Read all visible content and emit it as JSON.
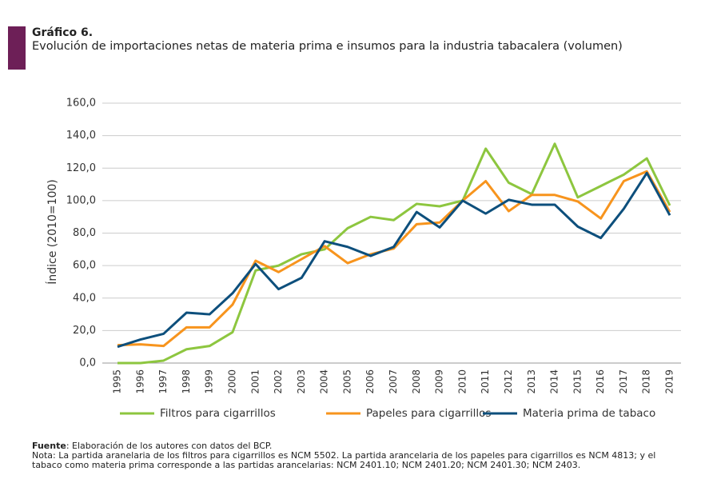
{
  "header": {
    "title": "Gráfico 6.",
    "subtitle": "Evolución de importaciones netas de materia prima e insumos para la industria tabacalera (volumen)"
  },
  "chart_data": {
    "type": "line",
    "ylabel": "Índice (2010=100)",
    "categories": [
      "1995",
      "1996",
      "1997",
      "1998",
      "1999",
      "2000",
      "2001",
      "2002",
      "2003",
      "2004",
      "2005",
      "2006",
      "2007",
      "2008",
      "2009",
      "2010",
      "2011",
      "2012",
      "2013",
      "2014",
      "2015",
      "2016",
      "2017",
      "2018",
      "2019"
    ],
    "series": [
      {
        "name": "Filtros para cigarrillos",
        "color": "#8dc63f",
        "values": [
          0,
          0,
          1.5,
          8.5,
          10.5,
          19,
          57,
          60,
          67,
          70,
          83,
          90,
          88,
          98,
          96.5,
          100,
          132,
          111,
          104,
          135,
          102,
          109,
          116,
          126,
          97
        ]
      },
      {
        "name": "Papeles para cigarrillos",
        "color": "#f7941d",
        "values": [
          11,
          11.5,
          10.5,
          22,
          22,
          36,
          63,
          56,
          64,
          72,
          61.5,
          67,
          70.5,
          85.5,
          86.5,
          100,
          112,
          93.5,
          103.5,
          103.5,
          99.5,
          89,
          112,
          118,
          93
        ]
      },
      {
        "name": "Materia prima de tabaco",
        "color": "#0d4f7c",
        "values": [
          10,
          14.5,
          18,
          31,
          30,
          43,
          61,
          45.5,
          52.5,
          75,
          71.5,
          66,
          71.5,
          93,
          83.5,
          100,
          92,
          100.5,
          97.5,
          97.5,
          84,
          77,
          95,
          117,
          91
        ]
      }
    ],
    "ylim": [
      0,
      160
    ],
    "yticks": [
      {
        "value": 0,
        "label": "0,0"
      },
      {
        "value": 20,
        "label": "20,0"
      },
      {
        "value": 40,
        "label": "40,0"
      },
      {
        "value": 60,
        "label": "60,0"
      },
      {
        "value": 80,
        "label": "80,0"
      },
      {
        "value": 100,
        "label": "100,0"
      },
      {
        "value": 120,
        "label": "120,0"
      },
      {
        "value": 140,
        "label": "140,0"
      },
      {
        "value": 160,
        "label": "160,0"
      }
    ],
    "grid": true,
    "legend": "bottom"
  },
  "footer": {
    "source_label": "Fuente",
    "source_text": ": Elaboración de los autores con datos del BCP.",
    "note": "Nota: La partida aranelaria de los filtros para cigarrillos es NCM 5502. La partida arancelaria de los papeles para cigarrillos es NCM 4813; y el tabaco como materia prima corresponde a las partidas arancelarias: NCM 2401.10; NCM 2401.20; NCM 2401.30; NCM 2403."
  }
}
